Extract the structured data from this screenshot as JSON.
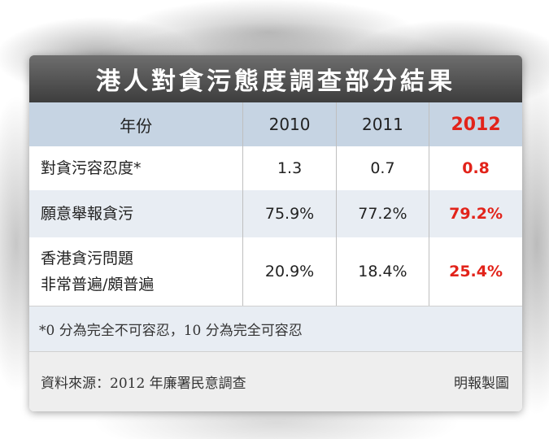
{
  "chart_data": {
    "type": "table",
    "title": "港人對貪污態度調查部分結果",
    "header": {
      "label": "年份",
      "years": [
        "2010",
        "2011",
        "2012"
      ]
    },
    "highlight_color": "#e2231a",
    "rows": [
      {
        "label": "對貪污容忍度*",
        "values": [
          "1.3",
          "0.7",
          "0.8"
        ]
      },
      {
        "label": "願意舉報貪污",
        "values": [
          "75.9%",
          "77.2%",
          "79.2%"
        ]
      },
      {
        "label_lines": [
          "香港貪污問題",
          "非常普遍/頗普遍"
        ],
        "values": [
          "20.9%",
          "18.4%",
          "25.4%"
        ]
      }
    ],
    "footnote": "*0 分為完全不可容忍，10 分為完全可容忍",
    "source": "資料來源：2012 年廉署民意調查",
    "credit": "明報製圖"
  }
}
